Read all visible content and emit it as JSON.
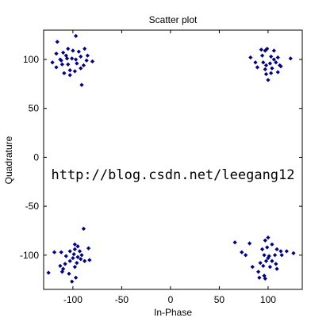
{
  "chart_data": {
    "type": "scatter",
    "title": "Scatter plot",
    "xlabel": "In-Phase",
    "ylabel": "Quadrature",
    "xlim": [
      -130,
      135
    ],
    "ylim": [
      -135,
      130
    ],
    "grid": false,
    "legend": "none",
    "marker": "point",
    "xticks": [
      -100,
      -50,
      0,
      50,
      100
    ],
    "yticks": [
      -100,
      -50,
      0,
      50,
      100
    ],
    "xtick_labels": [
      "-100",
      "-50",
      "0",
      "50",
      "100"
    ],
    "ytick_labels": [
      "-100",
      "-50",
      "0",
      "50",
      "100"
    ],
    "series": [
      {
        "values": [
          [
            -116,
            118
          ],
          [
            -97,
            124
          ],
          [
            -88,
            111
          ],
          [
            -105,
            111
          ],
          [
            -117,
            106
          ],
          [
            -110,
            107
          ],
          [
            -100,
            109
          ],
          [
            -94,
            108
          ],
          [
            -85,
            104
          ],
          [
            -121,
            97
          ],
          [
            -112,
            99
          ],
          [
            -106,
            101
          ],
          [
            -101,
            101
          ],
          [
            -97,
            100
          ],
          [
            -92,
            103
          ],
          [
            -80,
            98
          ],
          [
            -111,
            95
          ],
          [
            -105,
            95
          ],
          [
            -96,
            96
          ],
          [
            -89,
            94
          ],
          [
            -117,
            92
          ],
          [
            -103,
            89
          ],
          [
            -109,
            86
          ],
          [
            -98,
            88
          ],
          [
            -92,
            91
          ],
          [
            -113,
            100
          ],
          [
            -103,
            84
          ],
          [
            -91,
            74
          ],
          [
            -107,
            104
          ],
          [
            -86,
            99
          ]
        ]
      },
      {
        "values": [
          [
            99,
            111
          ],
          [
            97,
            109
          ],
          [
            93,
            110
          ],
          [
            106,
            109
          ],
          [
            82,
            102
          ],
          [
            103,
            103
          ],
          [
            110,
            102
          ],
          [
            87,
            97
          ],
          [
            95,
            97
          ],
          [
            98,
            94
          ],
          [
            102,
            96
          ],
          [
            108,
            97
          ],
          [
            112,
            94
          ],
          [
            123,
            101
          ],
          [
            89,
            92
          ],
          [
            97,
            90
          ],
          [
            104,
            91
          ],
          [
            110,
            87
          ],
          [
            98,
            85
          ],
          [
            103,
            86
          ],
          [
            100,
            79
          ],
          [
            113,
            93
          ],
          [
            106,
            100
          ],
          [
            94,
            104
          ]
        ]
      },
      {
        "values": [
          [
            -89,
            -73
          ],
          [
            -98,
            -89
          ],
          [
            -84,
            -93
          ],
          [
            -95,
            -91
          ],
          [
            -103,
            -96
          ],
          [
            -98,
            -94
          ],
          [
            -93,
            -96
          ],
          [
            -112,
            -97
          ],
          [
            -107,
            -101
          ],
          [
            -100,
            -103
          ],
          [
            -95,
            -102
          ],
          [
            -91,
            -100
          ],
          [
            -103,
            -106
          ],
          [
            -83,
            -105
          ],
          [
            -88,
            -106
          ],
          [
            -113,
            -111
          ],
          [
            -98,
            -112
          ],
          [
            -111,
            -117
          ],
          [
            -104,
            -119
          ],
          [
            -125,
            -118
          ],
          [
            -97,
            -123
          ],
          [
            -101,
            -127
          ],
          [
            -119,
            -97
          ],
          [
            -108,
            -109
          ],
          [
            -96,
            -108
          ],
          [
            -92,
            -104
          ],
          [
            -110,
            -114
          ],
          [
            -99,
            -99
          ]
        ]
      },
      {
        "values": [
          [
            66,
            -87
          ],
          [
            81,
            -88
          ],
          [
            100,
            -82
          ],
          [
            97,
            -85
          ],
          [
            104,
            -89
          ],
          [
            99,
            -92
          ],
          [
            94,
            -94
          ],
          [
            109,
            -94
          ],
          [
            113,
            -96
          ],
          [
            119,
            -96
          ],
          [
            126,
            -98
          ],
          [
            77,
            -100
          ],
          [
            96,
            -100
          ],
          [
            101,
            -101
          ],
          [
            107,
            -100
          ],
          [
            114,
            -100
          ],
          [
            100,
            -103
          ],
          [
            98,
            -106
          ],
          [
            92,
            -108
          ],
          [
            108,
            -109
          ],
          [
            95,
            -111
          ],
          [
            102,
            -112
          ],
          [
            84,
            -112
          ],
          [
            109,
            -114
          ],
          [
            90,
            -117
          ],
          [
            96,
            -121
          ],
          [
            91,
            -123
          ],
          [
            97,
            -124
          ],
          [
            73,
            -97
          ],
          [
            104,
            -106
          ]
        ]
      }
    ]
  },
  "watermark": {
    "text": "http://blog.csdn.net/leegang12"
  },
  "colors": {
    "marker": "#00008b",
    "axes": "#000000",
    "background": "#ffffff",
    "watermark": "#e6e6e6"
  }
}
